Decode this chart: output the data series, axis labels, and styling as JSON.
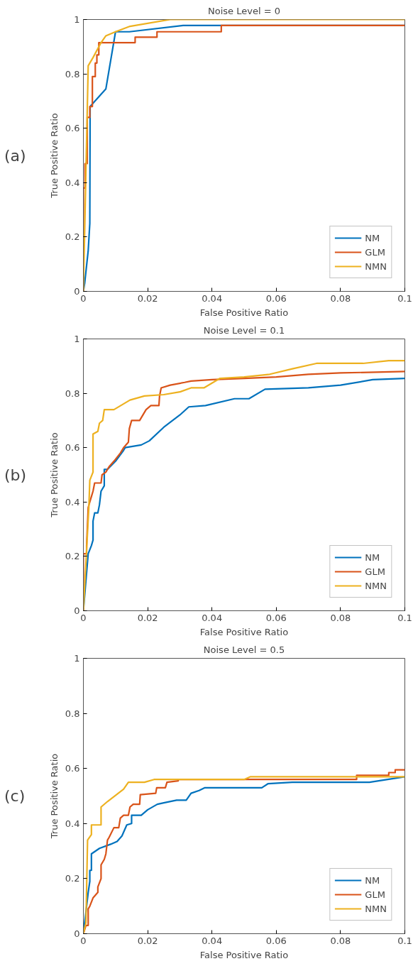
{
  "chart_data": [
    {
      "type": "line",
      "title": "Noise Level = 0",
      "xlabel": "False Positive Ratio",
      "ylabel": "True Positive Ratio",
      "annotations": [
        "(a)"
      ],
      "xlim": [
        0,
        0.1
      ],
      "ylim": [
        0,
        1
      ],
      "xticks": [
        0,
        0.02,
        0.04,
        0.06,
        0.08,
        0.1
      ],
      "yticks": [
        0,
        0.2,
        0.4,
        0.6,
        0.8,
        1
      ],
      "grid": false,
      "legend": "bottom right",
      "line_style": "solid",
      "series": [
        {
          "name": "NM",
          "color": "#0072bd",
          "x": [
            0,
            0.0004,
            0.0015,
            0.002,
            0.0021,
            0.007,
            0.01,
            0.0143,
            0.031,
            0.0425,
            0.1
          ],
          "values": [
            0,
            0.03,
            0.15,
            0.25,
            0.68,
            0.745,
            0.955,
            0.955,
            0.978,
            0.978,
            0.978
          ]
        },
        {
          "name": "GLM",
          "color": "#d95319",
          "x": [
            0,
            0,
            0.0005,
            0.0005,
            0.0012,
            0.0012,
            0.002,
            0.002,
            0.0028,
            0.0028,
            0.0037,
            0.0037,
            0.0042,
            0.0042,
            0.0048,
            0.0048,
            0.0161,
            0.0161,
            0.0229,
            0.0229,
            0.0429,
            0.0429,
            0.1
          ],
          "values": [
            0,
            0.38,
            0.38,
            0.47,
            0.47,
            0.64,
            0.64,
            0.68,
            0.68,
            0.79,
            0.79,
            0.84,
            0.84,
            0.87,
            0.87,
            0.915,
            0.915,
            0.935,
            0.935,
            0.955,
            0.955,
            0.978,
            0.978
          ]
        },
        {
          "name": "NMN",
          "color": "#edb120",
          "x": [
            0,
            0.0015,
            0.003,
            0.0055,
            0.007,
            0.01,
            0.0145,
            0.027,
            0.1
          ],
          "values": [
            0,
            0.83,
            0.86,
            0.915,
            0.94,
            0.955,
            0.975,
            1.0,
            1.0
          ]
        }
      ]
    },
    {
      "type": "line",
      "title": "Noise Level = 0.1",
      "xlabel": "False Positive Ratio",
      "ylabel": "True Positive Ratio",
      "annotations": [
        "(b)"
      ],
      "xlim": [
        0,
        0.1
      ],
      "ylim": [
        0,
        1
      ],
      "xticks": [
        0,
        0.02,
        0.04,
        0.06,
        0.08,
        0.1
      ],
      "yticks": [
        0,
        0.2,
        0.4,
        0.6,
        0.8,
        1
      ],
      "grid": false,
      "legend": "bottom right",
      "line_style": "solid",
      "series": [
        {
          "name": "NM",
          "color": "#0072bd",
          "x": [
            0,
            0.0015,
            0.0025,
            0.003,
            0.003,
            0.0035,
            0.0045,
            0.005,
            0.0055,
            0.0065,
            0.0065,
            0.0075,
            0.01,
            0.0125,
            0.013,
            0.018,
            0.0205,
            0.025,
            0.03,
            0.0328,
            0.038,
            0.047,
            0.0515,
            0.0565,
            0.07,
            0.08,
            0.09,
            0.1
          ],
          "values": [
            0,
            0.21,
            0.24,
            0.26,
            0.33,
            0.36,
            0.36,
            0.39,
            0.44,
            0.46,
            0.52,
            0.52,
            0.55,
            0.59,
            0.6,
            0.61,
            0.625,
            0.675,
            0.72,
            0.75,
            0.755,
            0.78,
            0.78,
            0.815,
            0.82,
            0.83,
            0.85,
            0.855
          ]
        },
        {
          "name": "GLM",
          "color": "#d95319",
          "x": [
            0,
            0,
            0.001,
            0.001,
            0.0015,
            0.002,
            0.0025,
            0.003,
            0.0035,
            0.0055,
            0.0058,
            0.007,
            0.008,
            0.0095,
            0.0115,
            0.0125,
            0.014,
            0.0143,
            0.015,
            0.0175,
            0.0195,
            0.021,
            0.0235,
            0.0237,
            0.0242,
            0.027,
            0.0315,
            0.0335,
            0.04,
            0.05,
            0.06,
            0.07,
            0.08,
            0.1
          ],
          "values": [
            0,
            0.21,
            0.21,
            0.24,
            0.38,
            0.4,
            0.42,
            0.44,
            0.47,
            0.47,
            0.5,
            0.51,
            0.53,
            0.55,
            0.58,
            0.6,
            0.62,
            0.67,
            0.7,
            0.7,
            0.74,
            0.755,
            0.755,
            0.79,
            0.82,
            0.83,
            0.84,
            0.845,
            0.85,
            0.855,
            0.86,
            0.87,
            0.875,
            0.88
          ]
        },
        {
          "name": "NMN",
          "color": "#edb120",
          "x": [
            0,
            0.0017,
            0.002,
            0.003,
            0.003,
            0.0045,
            0.005,
            0.006,
            0.0065,
            0.0095,
            0.0145,
            0.019,
            0.025,
            0.03,
            0.0335,
            0.0375,
            0.0425,
            0.05,
            0.058,
            0.065,
            0.0725,
            0.087,
            0.095,
            0.1
          ],
          "values": [
            0,
            0.38,
            0.48,
            0.51,
            0.65,
            0.66,
            0.69,
            0.7,
            0.74,
            0.74,
            0.775,
            0.79,
            0.795,
            0.805,
            0.82,
            0.82,
            0.855,
            0.86,
            0.87,
            0.89,
            0.91,
            0.91,
            0.92,
            0.92
          ]
        }
      ]
    },
    {
      "type": "line",
      "title": "Noise Level = 0.5",
      "xlabel": "False Positive Ratio",
      "ylabel": "True Positive Ratio",
      "annotations": [
        "(c)"
      ],
      "xlim": [
        0,
        0.1
      ],
      "ylim": [
        0,
        1
      ],
      "xticks": [
        0,
        0.02,
        0.04,
        0.06,
        0.08,
        0.1
      ],
      "yticks": [
        0,
        0.2,
        0.4,
        0.6,
        0.8,
        1
      ],
      "grid": false,
      "legend": "bottom right",
      "line_style": "solid",
      "series": [
        {
          "name": "NM",
          "color": "#0072bd",
          "x": [
            0,
            0.0015,
            0.002,
            0.002,
            0.0025,
            0.0025,
            0.005,
            0.0085,
            0.0105,
            0.012,
            0.0135,
            0.015,
            0.015,
            0.018,
            0.02,
            0.023,
            0.025,
            0.029,
            0.032,
            0.0335,
            0.036,
            0.0378,
            0.0555,
            0.0575,
            0.065,
            0.089,
            0.1
          ],
          "values": [
            0,
            0.15,
            0.19,
            0.23,
            0.23,
            0.29,
            0.31,
            0.325,
            0.335,
            0.355,
            0.395,
            0.4,
            0.43,
            0.43,
            0.45,
            0.47,
            0.475,
            0.485,
            0.485,
            0.51,
            0.52,
            0.53,
            0.53,
            0.545,
            0.55,
            0.55,
            0.57
          ]
        },
        {
          "name": "GLM",
          "color": "#d95319",
          "x": [
            0,
            0.0008,
            0.0015,
            0.0015,
            0.002,
            0.003,
            0.0045,
            0.0045,
            0.0055,
            0.0055,
            0.0065,
            0.007,
            0.0075,
            0.008,
            0.0095,
            0.011,
            0.0115,
            0.0125,
            0.014,
            0.0145,
            0.0155,
            0.0175,
            0.0177,
            0.0225,
            0.0228,
            0.0255,
            0.026,
            0.0295,
            0.0295,
            0.05,
            0.085,
            0.085,
            0.095,
            0.095,
            0.097,
            0.097,
            0.1
          ],
          "values": [
            0,
            0.03,
            0.03,
            0.09,
            0.1,
            0.13,
            0.15,
            0.17,
            0.2,
            0.25,
            0.27,
            0.29,
            0.34,
            0.35,
            0.385,
            0.385,
            0.42,
            0.43,
            0.43,
            0.46,
            0.47,
            0.47,
            0.505,
            0.51,
            0.53,
            0.53,
            0.55,
            0.555,
            0.56,
            0.56,
            0.56,
            0.575,
            0.575,
            0.585,
            0.585,
            0.595,
            0.595
          ]
        },
        {
          "name": "NMN",
          "color": "#edb120",
          "x": [
            0,
            0.0008,
            0.0013,
            0.0025,
            0.0025,
            0.0055,
            0.0055,
            0.0075,
            0.0125,
            0.014,
            0.019,
            0.022,
            0.05,
            0.052,
            0.1
          ],
          "values": [
            0,
            0.04,
            0.34,
            0.36,
            0.395,
            0.395,
            0.46,
            0.48,
            0.525,
            0.55,
            0.55,
            0.56,
            0.56,
            0.57,
            0.57
          ]
        }
      ]
    }
  ]
}
